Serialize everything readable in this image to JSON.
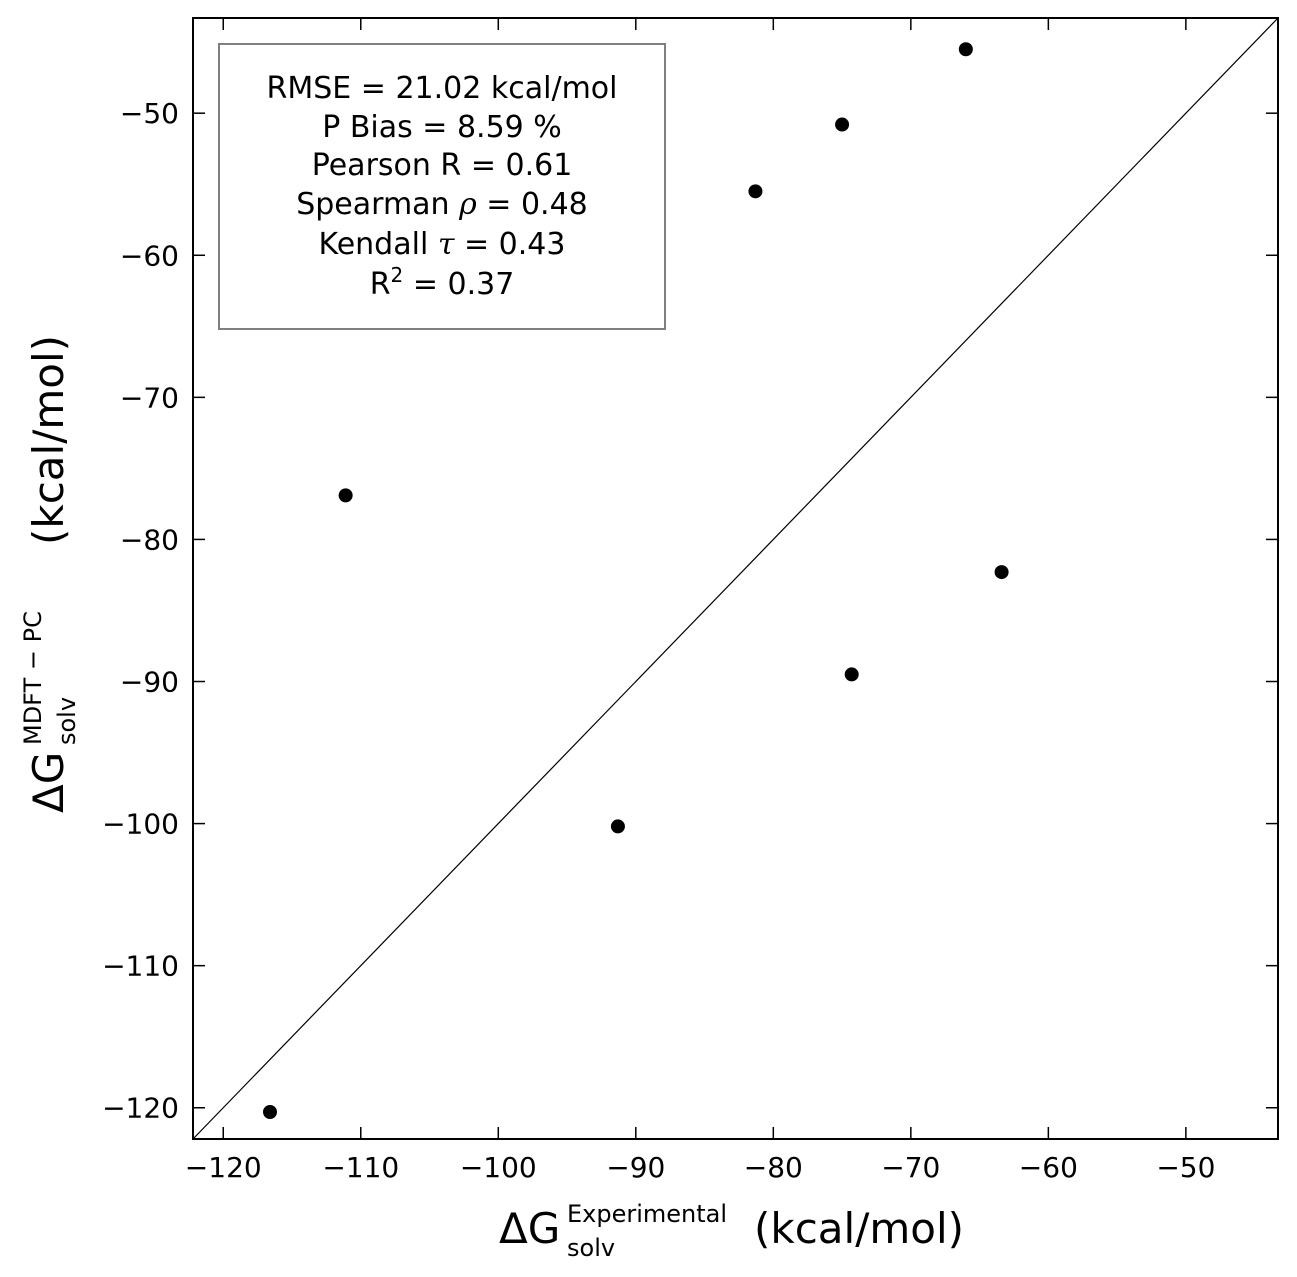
{
  "chart_data": {
    "type": "scatter",
    "x_axis": {
      "symbol": "ΔG",
      "sub": "solv",
      "sup": "Experimental",
      "unit": "(kcal/mol)",
      "range": [
        -122.2,
        -43.3
      ],
      "ticks": [
        -120,
        -110,
        -100,
        -90,
        -80,
        -70,
        -60,
        -50
      ],
      "tick_labels": [
        "−120",
        "−110",
        "−100",
        "−90",
        "−80",
        "−70",
        "−60",
        "−50"
      ]
    },
    "y_axis": {
      "symbol": "ΔG",
      "sub": "solv",
      "sup": "MDFT − PC",
      "unit": "(kcal/mol)",
      "range": [
        -122.2,
        -43.3
      ],
      "ticks": [
        -120,
        -110,
        -100,
        -90,
        -80,
        -70,
        -60,
        -50
      ],
      "tick_labels": [
        "−120",
        "−110",
        "−100",
        "−90",
        "−80",
        "−70",
        "−60",
        "−50"
      ]
    },
    "points": [
      {
        "x": -116.6,
        "y": -120.3
      },
      {
        "x": -111.1,
        "y": -76.9
      },
      {
        "x": -91.3,
        "y": -100.2
      },
      {
        "x": -81.3,
        "y": -55.5
      },
      {
        "x": -75.0,
        "y": -50.8
      },
      {
        "x": -74.3,
        "y": -89.5
      },
      {
        "x": -66.0,
        "y": -45.5
      },
      {
        "x": -63.4,
        "y": -82.3
      }
    ],
    "reference_line": "y = x",
    "marker_color": "#000000",
    "stats": [
      {
        "text": "RMSE = 21.02 kcal/mol"
      },
      {
        "text": "P Bias = 8.59 %"
      },
      {
        "text": "Pearson R = 0.61"
      },
      {
        "prefix": "Spearman ",
        "symbol": "ρ",
        "suffix": " = 0.48"
      },
      {
        "prefix": "Kendall ",
        "symbol": "τ",
        "suffix": " = 0.43"
      },
      {
        "prefix": "R",
        "sup": "2",
        "suffix": " = 0.37"
      }
    ],
    "grid": false,
    "legend": "none"
  }
}
